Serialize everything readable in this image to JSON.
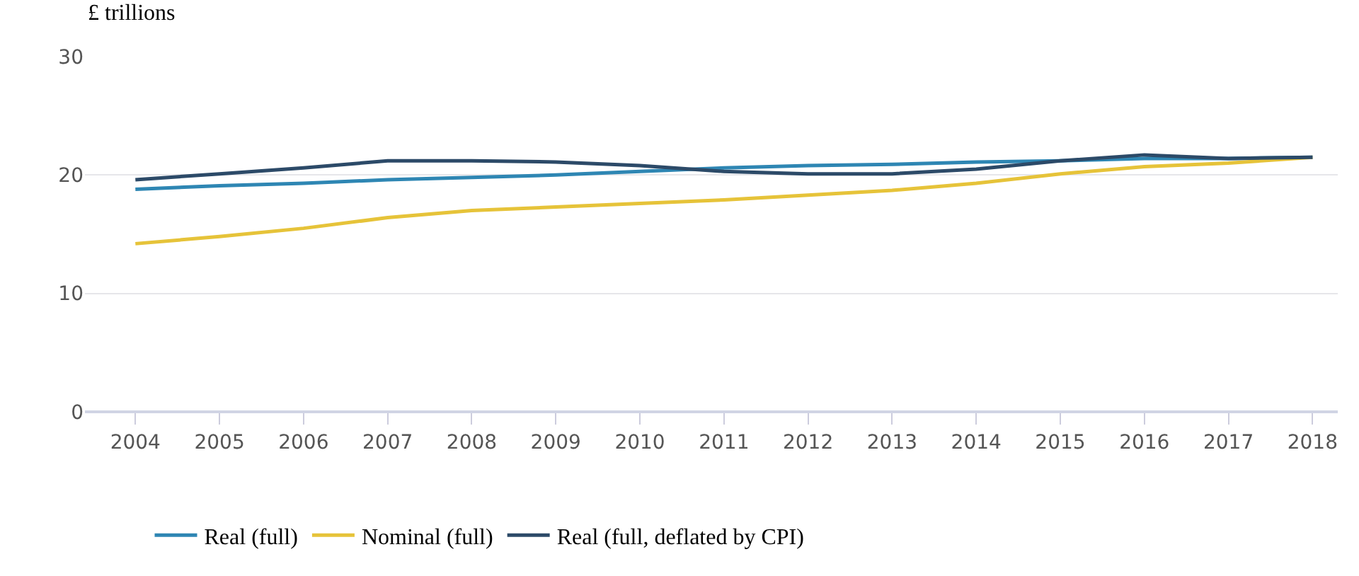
{
  "chart_data": {
    "type": "line",
    "ylabel": "£ trillions",
    "categories": [
      "2004",
      "2005",
      "2006",
      "2007",
      "2008",
      "2009",
      "2010",
      "2011",
      "2012",
      "2013",
      "2014",
      "2015",
      "2016",
      "2017",
      "2018"
    ],
    "series": [
      {
        "name": "Real (full)",
        "color": "#2e86b3",
        "values": [
          18.8,
          19.1,
          19.3,
          19.6,
          19.8,
          20.0,
          20.3,
          20.6,
          20.8,
          20.9,
          21.1,
          21.2,
          21.4,
          21.4,
          21.5
        ]
      },
      {
        "name": "Nominal (full)",
        "color": "#e6c339",
        "values": [
          14.2,
          14.8,
          15.5,
          16.4,
          17.0,
          17.3,
          17.6,
          17.9,
          18.3,
          18.7,
          19.3,
          20.1,
          20.7,
          21.0,
          21.5
        ]
      },
      {
        "name": "Real (full, deflated by CPI)",
        "color": "#2c4a68",
        "values": [
          19.6,
          20.1,
          20.6,
          21.2,
          21.2,
          21.1,
          20.8,
          20.3,
          20.1,
          20.1,
          20.5,
          21.2,
          21.7,
          21.4,
          21.5
        ]
      }
    ],
    "ylim": [
      0,
      30
    ],
    "yticks": [
      0,
      10,
      20,
      30
    ],
    "grid": "y",
    "legend": "bottom",
    "marker": "none",
    "line_style": "solid"
  }
}
